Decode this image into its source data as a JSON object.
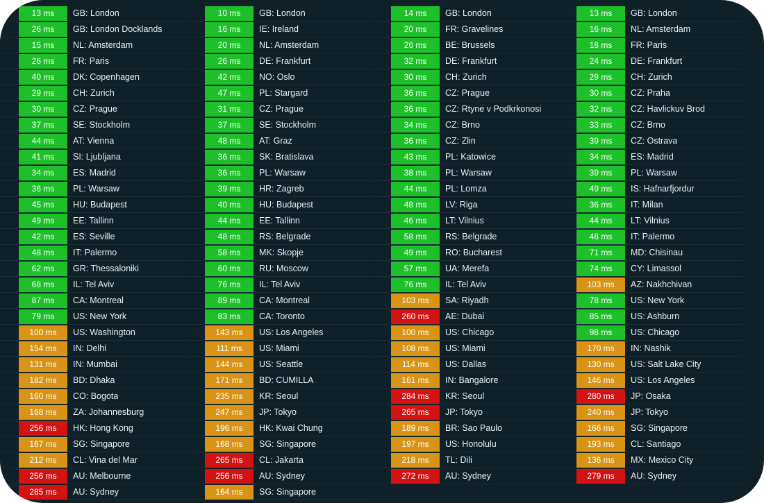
{
  "colors": {
    "good": "#1ec02a",
    "medium": "#d99416",
    "bad": "#d31212",
    "background": "#0f2029"
  },
  "columns": [
    {
      "rows": [
        {
          "ms": "13 ms",
          "loc": "GB: London",
          "s": "g"
        },
        {
          "ms": "26 ms",
          "loc": "GB: London Docklands",
          "s": "g"
        },
        {
          "ms": "15 ms",
          "loc": "NL: Amsterdam",
          "s": "g"
        },
        {
          "ms": "26 ms",
          "loc": "FR: Paris",
          "s": "g"
        },
        {
          "ms": "40 ms",
          "loc": "DK: Copenhagen",
          "s": "g"
        },
        {
          "ms": "29 ms",
          "loc": "CH: Zurich",
          "s": "g"
        },
        {
          "ms": "30 ms",
          "loc": "CZ: Prague",
          "s": "g"
        },
        {
          "ms": "37 ms",
          "loc": "SE: Stockholm",
          "s": "g"
        },
        {
          "ms": "44 ms",
          "loc": "AT: Vienna",
          "s": "g"
        },
        {
          "ms": "41 ms",
          "loc": "SI: Ljubljana",
          "s": "g"
        },
        {
          "ms": "34 ms",
          "loc": "ES: Madrid",
          "s": "g"
        },
        {
          "ms": "36 ms",
          "loc": "PL: Warsaw",
          "s": "g"
        },
        {
          "ms": "45 ms",
          "loc": "HU: Budapest",
          "s": "g"
        },
        {
          "ms": "49 ms",
          "loc": "EE: Tallinn",
          "s": "g"
        },
        {
          "ms": "42 ms",
          "loc": "ES: Seville",
          "s": "g"
        },
        {
          "ms": "48 ms",
          "loc": "IT: Palermo",
          "s": "g"
        },
        {
          "ms": "62 ms",
          "loc": "GR: Thessaloniki",
          "s": "g"
        },
        {
          "ms": "68 ms",
          "loc": "IL: Tel Aviv",
          "s": "g"
        },
        {
          "ms": "87 ms",
          "loc": "CA: Montreal",
          "s": "g"
        },
        {
          "ms": "79 ms",
          "loc": "US: New York",
          "s": "g"
        },
        {
          "ms": "100 ms",
          "loc": "US: Washington",
          "s": "o"
        },
        {
          "ms": "154 ms",
          "loc": "IN: Delhi",
          "s": "o"
        },
        {
          "ms": "131 ms",
          "loc": "IN: Mumbai",
          "s": "o"
        },
        {
          "ms": "182 ms",
          "loc": "BD: Dhaka",
          "s": "o"
        },
        {
          "ms": "160 ms",
          "loc": "CO: Bogota",
          "s": "o"
        },
        {
          "ms": "168 ms",
          "loc": "ZA: Johannesburg",
          "s": "o"
        },
        {
          "ms": "256 ms",
          "loc": "HK: Hong Kong",
          "s": "r"
        },
        {
          "ms": "167 ms",
          "loc": "SG: Singapore",
          "s": "o"
        },
        {
          "ms": "212 ms",
          "loc": "CL: Vina del Mar",
          "s": "o"
        },
        {
          "ms": "256 ms",
          "loc": "AU: Melbourne",
          "s": "r"
        },
        {
          "ms": "285 ms",
          "loc": "AU: Sydney",
          "s": "r"
        }
      ]
    },
    {
      "rows": [
        {
          "ms": "10 ms",
          "loc": "GB: London",
          "s": "g"
        },
        {
          "ms": "16 ms",
          "loc": "IE: Ireland",
          "s": "g"
        },
        {
          "ms": "20 ms",
          "loc": "NL: Amsterdam",
          "s": "g"
        },
        {
          "ms": "26 ms",
          "loc": "DE: Frankfurt",
          "s": "g"
        },
        {
          "ms": "42 ms",
          "loc": "NO: Oslo",
          "s": "g"
        },
        {
          "ms": "47 ms",
          "loc": "PL: Stargard",
          "s": "g"
        },
        {
          "ms": "31 ms",
          "loc": "CZ: Prague",
          "s": "g"
        },
        {
          "ms": "37 ms",
          "loc": "SE: Stockholm",
          "s": "g"
        },
        {
          "ms": "48 ms",
          "loc": "AT: Graz",
          "s": "g"
        },
        {
          "ms": "36 ms",
          "loc": "SK: Bratislava",
          "s": "g"
        },
        {
          "ms": "36 ms",
          "loc": "PL: Warsaw",
          "s": "g"
        },
        {
          "ms": "39 ms",
          "loc": "HR: Zagreb",
          "s": "g"
        },
        {
          "ms": "40 ms",
          "loc": "HU: Budapest",
          "s": "g"
        },
        {
          "ms": "44 ms",
          "loc": "EE: Tallinn",
          "s": "g"
        },
        {
          "ms": "48 ms",
          "loc": "RS: Belgrade",
          "s": "g"
        },
        {
          "ms": "58 ms",
          "loc": "MK: Skopje",
          "s": "g"
        },
        {
          "ms": "60 ms",
          "loc": "RU: Moscow",
          "s": "g"
        },
        {
          "ms": "76 ms",
          "loc": "IL: Tel Aviv",
          "s": "g"
        },
        {
          "ms": "89 ms",
          "loc": "CA: Montreal",
          "s": "g"
        },
        {
          "ms": "83 ms",
          "loc": "CA: Toronto",
          "s": "g"
        },
        {
          "ms": "143 ms",
          "loc": "US: Los Angeles",
          "s": "o"
        },
        {
          "ms": "111 ms",
          "loc": "US: Miami",
          "s": "o"
        },
        {
          "ms": "144 ms",
          "loc": "US: Seattle",
          "s": "o"
        },
        {
          "ms": "171 ms",
          "loc": "BD: CUMILLA",
          "s": "o"
        },
        {
          "ms": "235 ms",
          "loc": "KR: Seoul",
          "s": "o"
        },
        {
          "ms": "247 ms",
          "loc": "JP: Tokyo",
          "s": "o"
        },
        {
          "ms": "196 ms",
          "loc": "HK: Kwai Chung",
          "s": "o"
        },
        {
          "ms": "168 ms",
          "loc": "SG: Singapore",
          "s": "o"
        },
        {
          "ms": "265 ms",
          "loc": "CL: Jakarta",
          "s": "r"
        },
        {
          "ms": "256 ms",
          "loc": "AU: Sydney",
          "s": "r"
        },
        {
          "ms": "164 ms",
          "loc": "SG: Singapore",
          "s": "o"
        }
      ]
    },
    {
      "rows": [
        {
          "ms": "14 ms",
          "loc": "GB: London",
          "s": "g"
        },
        {
          "ms": "20 ms",
          "loc": "FR: Gravelines",
          "s": "g"
        },
        {
          "ms": "26 ms",
          "loc": "BE: Brussels",
          "s": "g"
        },
        {
          "ms": "32 ms",
          "loc": "DE: Frankfurt",
          "s": "g"
        },
        {
          "ms": "30 ms",
          "loc": "CH: Zurich",
          "s": "g"
        },
        {
          "ms": "36 ms",
          "loc": "CZ: Prague",
          "s": "g"
        },
        {
          "ms": "36 ms",
          "loc": "CZ: Rtyne v Podkrkonosi",
          "s": "g"
        },
        {
          "ms": "34 ms",
          "loc": "CZ: Brno",
          "s": "g"
        },
        {
          "ms": "36 ms",
          "loc": "CZ: Zlin",
          "s": "g"
        },
        {
          "ms": "43 ms",
          "loc": "PL: Katowice",
          "s": "g"
        },
        {
          "ms": "38 ms",
          "loc": "PL: Warsaw",
          "s": "g"
        },
        {
          "ms": "44 ms",
          "loc": "PL: Lomza",
          "s": "g"
        },
        {
          "ms": "48 ms",
          "loc": "LV: Riga",
          "s": "g"
        },
        {
          "ms": "46 ms",
          "loc": "LT: Vilnius",
          "s": "g"
        },
        {
          "ms": "58 ms",
          "loc": "RS: Belgrade",
          "s": "g"
        },
        {
          "ms": "49 ms",
          "loc": "RO: Bucharest",
          "s": "g"
        },
        {
          "ms": "57 ms",
          "loc": "UA: Merefa",
          "s": "g"
        },
        {
          "ms": "76 ms",
          "loc": "IL: Tel Aviv",
          "s": "g"
        },
        {
          "ms": "103 ms",
          "loc": "SA: Riyadh",
          "s": "o"
        },
        {
          "ms": "260 ms",
          "loc": "AE: Dubai",
          "s": "r"
        },
        {
          "ms": "100 ms",
          "loc": "US: Chicago",
          "s": "o"
        },
        {
          "ms": "108 ms",
          "loc": "US: Miami",
          "s": "o"
        },
        {
          "ms": "114 ms",
          "loc": "US: Dallas",
          "s": "o"
        },
        {
          "ms": "161 ms",
          "loc": "IN: Bangalore",
          "s": "o"
        },
        {
          "ms": "284 ms",
          "loc": "KR: Seoul",
          "s": "r"
        },
        {
          "ms": "265 ms",
          "loc": "JP: Tokyo",
          "s": "r"
        },
        {
          "ms": "189 ms",
          "loc": "BR: Sao Paulo",
          "s": "o"
        },
        {
          "ms": "197 ms",
          "loc": "US: Honolulu",
          "s": "o"
        },
        {
          "ms": "218 ms",
          "loc": "TL: Dili",
          "s": "o"
        },
        {
          "ms": "272 ms",
          "loc": "AU: Sydney",
          "s": "r"
        }
      ]
    },
    {
      "rows": [
        {
          "ms": "13 ms",
          "loc": "GB: London",
          "s": "g"
        },
        {
          "ms": "16 ms",
          "loc": "NL: Amsterdam",
          "s": "g"
        },
        {
          "ms": "18 ms",
          "loc": "FR: Paris",
          "s": "g"
        },
        {
          "ms": "24 ms",
          "loc": "DE: Frankfurt",
          "s": "g"
        },
        {
          "ms": "29 ms",
          "loc": "CH: Zurich",
          "s": "g"
        },
        {
          "ms": "30 ms",
          "loc": "CZ: Praha",
          "s": "g"
        },
        {
          "ms": "32 ms",
          "loc": "CZ: Havlickuv Brod",
          "s": "g"
        },
        {
          "ms": "33 ms",
          "loc": "CZ: Brno",
          "s": "g"
        },
        {
          "ms": "39 ms",
          "loc": "CZ: Ostrava",
          "s": "g"
        },
        {
          "ms": "34 ms",
          "loc": "ES: Madrid",
          "s": "g"
        },
        {
          "ms": "39 ms",
          "loc": "PL: Warsaw",
          "s": "g"
        },
        {
          "ms": "49 ms",
          "loc": "IS: Hafnarfjordur",
          "s": "g"
        },
        {
          "ms": "36 ms",
          "loc": "IT: Milan",
          "s": "g"
        },
        {
          "ms": "44 ms",
          "loc": "LT: Vilnius",
          "s": "g"
        },
        {
          "ms": "48 ms",
          "loc": "IT: Palermo",
          "s": "g"
        },
        {
          "ms": "71 ms",
          "loc": "MD: Chisinau",
          "s": "g"
        },
        {
          "ms": "74 ms",
          "loc": "CY: Limassol",
          "s": "g"
        },
        {
          "ms": "103 ms",
          "loc": "AZ: Nakhchivan",
          "s": "o"
        },
        {
          "ms": "78 ms",
          "loc": "US: New York",
          "s": "g"
        },
        {
          "ms": "85 ms",
          "loc": "US: Ashburn",
          "s": "g"
        },
        {
          "ms": "98 ms",
          "loc": "US: Chicago",
          "s": "g"
        },
        {
          "ms": "170 ms",
          "loc": "IN: Nashik",
          "s": "o"
        },
        {
          "ms": "130 ms",
          "loc": "US: Salt Lake City",
          "s": "o"
        },
        {
          "ms": "146 ms",
          "loc": "US: Los Angeles",
          "s": "o"
        },
        {
          "ms": "280 ms",
          "loc": "JP: Osaka",
          "s": "r"
        },
        {
          "ms": "240 ms",
          "loc": "JP: Tokyo",
          "s": "o"
        },
        {
          "ms": "166 ms",
          "loc": "SG: Singapore",
          "s": "o"
        },
        {
          "ms": "193 ms",
          "loc": "CL: Santiago",
          "s": "o"
        },
        {
          "ms": "136 ms",
          "loc": "MX: Mexico City",
          "s": "o"
        },
        {
          "ms": "279 ms",
          "loc": "AU: Sydney",
          "s": "r"
        }
      ]
    }
  ]
}
